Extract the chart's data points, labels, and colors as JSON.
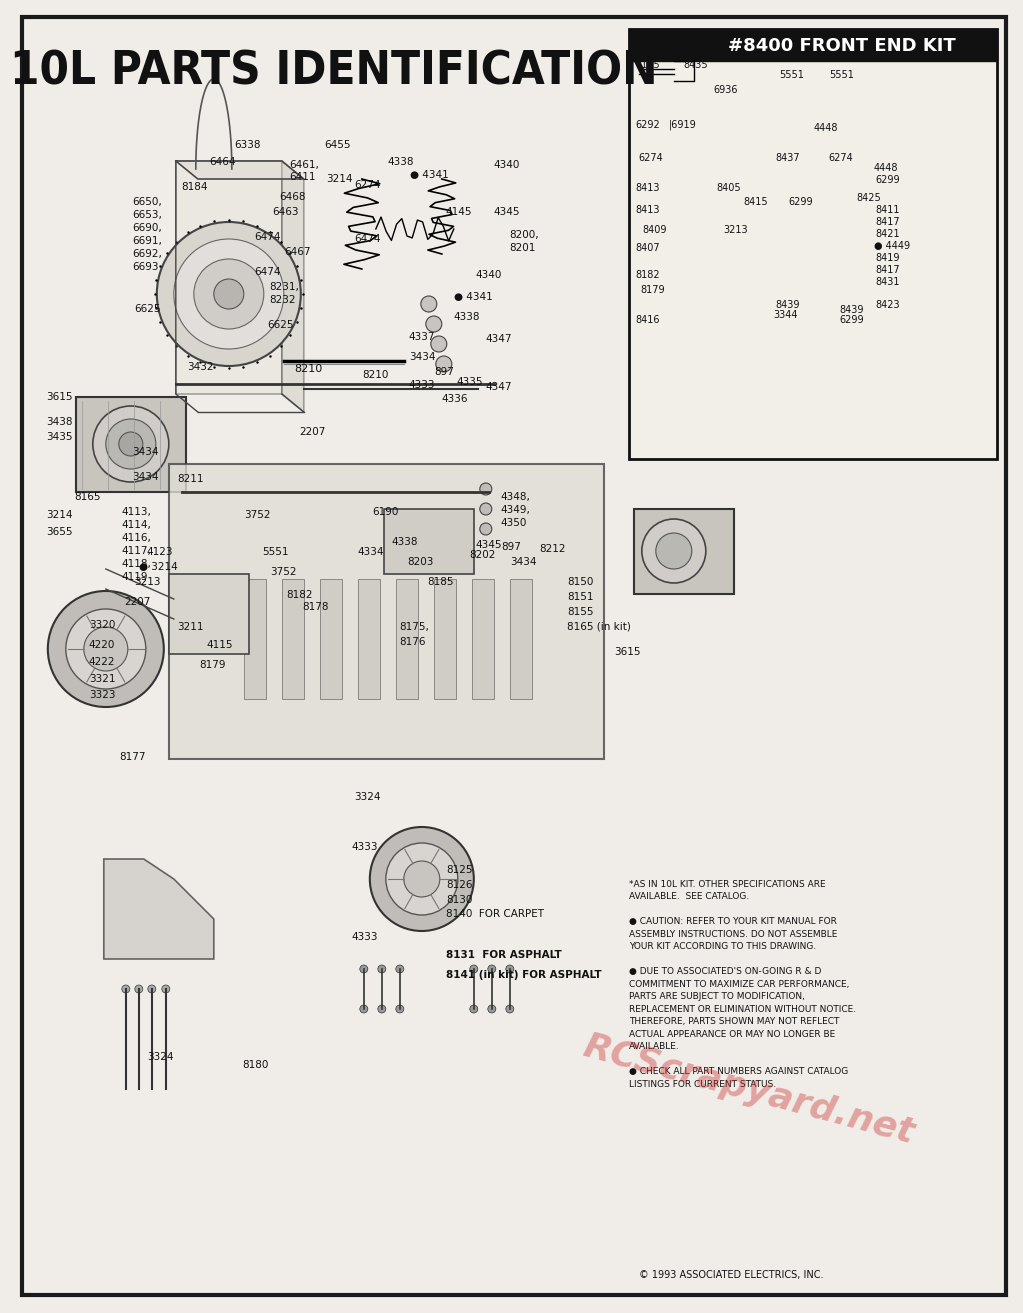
{
  "title": "10L PARTS IDENTIFICATION",
  "subtitle": "#8400 FRONT END KIT",
  "bg_color": "#f0ede8",
  "border_color": "#1a1a1a",
  "title_color": "#111111",
  "watermark": "RCScrapyard.net",
  "watermark_color": "#cc3333",
  "watermark_alpha": 0.4,
  "footer_copyright": "© 1993 ASSOCIATED ELECTRICS, INC.",
  "notes_text": "*AS IN 10L KIT. OTHER SPECIFICATIONS ARE\nAVAILABLE.  SEE CATALOG.\n\n● CAUTION: REFER TO YOUR KIT MANUAL FOR\nASSEMBLY INSTRUCTIONS. DO NOT ASSEMBLE\nYOUR KIT ACCORDING TO THIS DRAWING.\n\n● DUE TO ASSOCIATED'S ON-GOING R & D\nCOMMITMENT TO MAXIMIZE CAR PERFORMANCE,\nPARTS ARE SUBJECT TO MODIFICATION,\nREPLACEMENT OR ELIMINATION WITHOUT NOTICE.\nTHEREFORE, PARTS SHOWN MAY NOT REFLECT\nACTUAL APPEARANCE OR MAY NO LONGER BE\nAVAILABLE.\n\n● CHECK ALL PART NUMBERS AGAINST CATALOG\nLISTINGS FOR CURRENT STATUS.",
  "carpet_parts_text": "8125\n8126\n8130\n8140  FOR CARPET",
  "asphalt1_text": "8131  FOR ASPHALT",
  "asphalt2_text": "8141 (in kit) FOR ASPHALT",
  "figsize": [
    10.0,
    12.94
  ],
  "dpi": 100
}
